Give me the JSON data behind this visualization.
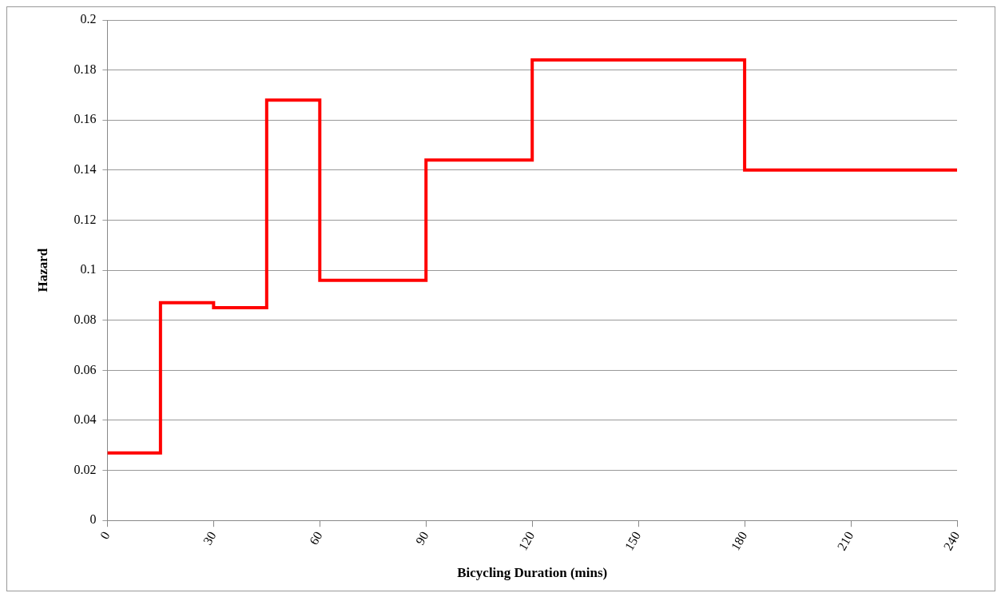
{
  "chart_data": {
    "type": "step",
    "xlabel": "Bicycling Duration (mins)",
    "ylabel": "Hazard",
    "x": [
      0,
      15,
      30,
      45,
      60,
      90,
      120,
      180,
      240
    ],
    "values": [
      0.027,
      0.087,
      0.085,
      0.168,
      0.096,
      0.144,
      0.184,
      0.14,
      0.14
    ],
    "color": "#ff0000",
    "xlim": [
      0,
      240
    ],
    "xticks": [
      0,
      30,
      60,
      90,
      120,
      150,
      180,
      210,
      240
    ],
    "ylim": [
      0,
      0.2
    ],
    "yticks": [
      0,
      0.02,
      0.04,
      0.06,
      0.08,
      0.1,
      0.12,
      0.14,
      0.16,
      0.18,
      0.2
    ],
    "grid": "y"
  }
}
